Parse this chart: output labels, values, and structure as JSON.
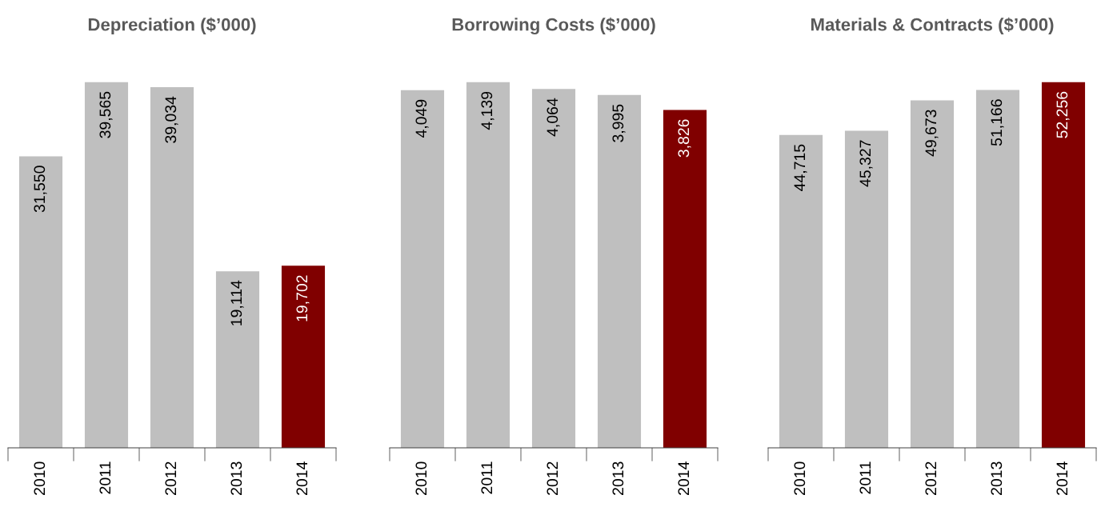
{
  "chart_data": [
    {
      "type": "bar",
      "title": "Depreciation ($’000)",
      "categories": [
        "2010",
        "2011",
        "2012",
        "2013",
        "2014"
      ],
      "values": [
        31550,
        39565,
        39034,
        19114,
        19702
      ],
      "value_labels": [
        "31,550",
        "39,565",
        "39,034",
        "19,114",
        "19,702"
      ],
      "colors": [
        "#bfbfbf",
        "#bfbfbf",
        "#bfbfbf",
        "#bfbfbf",
        "#800000"
      ],
      "grid": false,
      "legend": false
    },
    {
      "type": "bar",
      "title": "Borrowing Costs ($’000)",
      "categories": [
        "2010",
        "2011",
        "2012",
        "2013",
        "2014"
      ],
      "values": [
        4049,
        4139,
        4064,
        3995,
        3826
      ],
      "value_labels": [
        "4,049",
        "4,139",
        "4,064",
        "3,995",
        "3,826"
      ],
      "colors": [
        "#bfbfbf",
        "#bfbfbf",
        "#bfbfbf",
        "#bfbfbf",
        "#800000"
      ],
      "grid": false,
      "legend": false
    },
    {
      "type": "bar",
      "title": "Materials & Contracts ($’000)",
      "categories": [
        "2010",
        "2011",
        "2012",
        "2013",
        "2014"
      ],
      "values": [
        44715,
        45327,
        49673,
        51166,
        52256
      ],
      "value_labels": [
        "44,715",
        "45,327",
        "49,673",
        "51,166",
        "52,256"
      ],
      "colors": [
        "#bfbfbf",
        "#bfbfbf",
        "#bfbfbf",
        "#bfbfbf",
        "#800000"
      ],
      "grid": false,
      "legend": false
    }
  ]
}
